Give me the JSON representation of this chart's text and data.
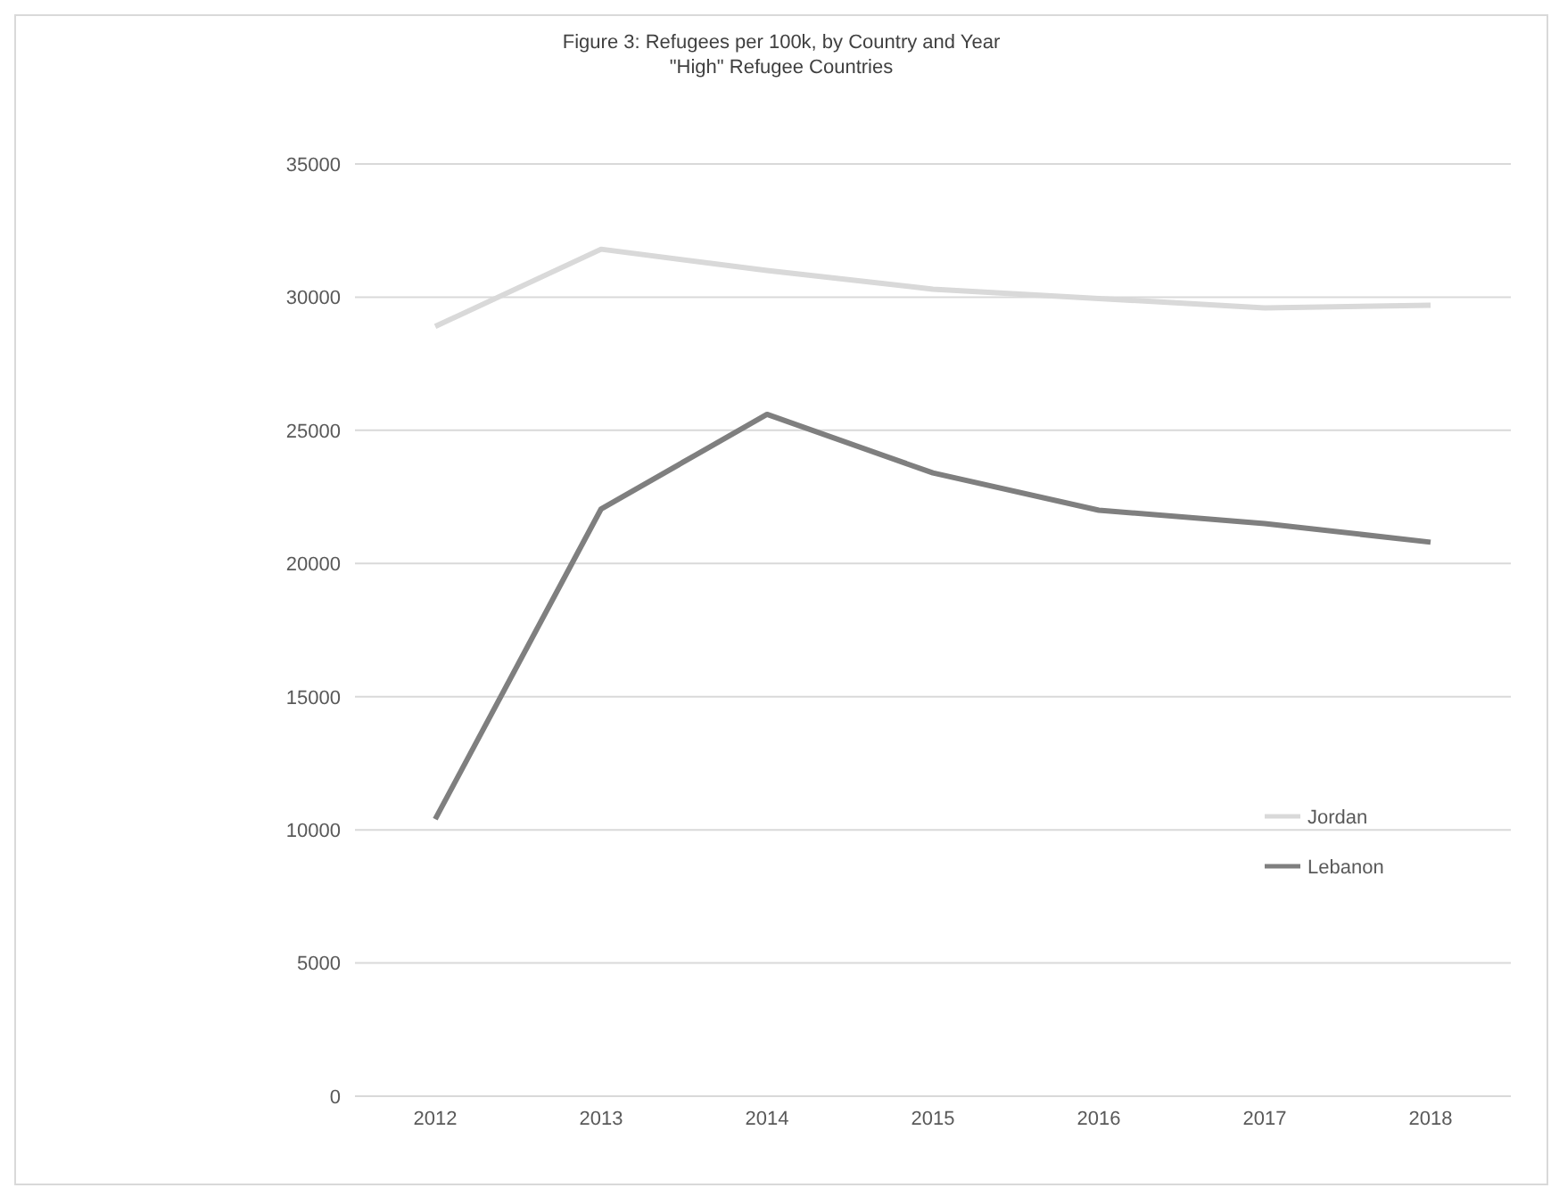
{
  "chart_data": {
    "type": "line",
    "title": "Figure 3: Refugees per 100k, by Country and Year",
    "subtitle": "\"High\" Refugee Countries",
    "categories": [
      "2012",
      "2013",
      "2014",
      "2015",
      "2016",
      "2017",
      "2018"
    ],
    "series": [
      {
        "name": "Jordan",
        "color": "#d9d9d9",
        "values": [
          28900,
          31800,
          31000,
          30300,
          29950,
          29600,
          29700
        ]
      },
      {
        "name": "Lebanon",
        "color": "#7f7f7f",
        "values": [
          10400,
          22050,
          25600,
          23400,
          22000,
          21500,
          20800
        ]
      }
    ],
    "ylim": [
      0,
      35000
    ],
    "yticks": [
      0,
      5000,
      10000,
      15000,
      20000,
      25000,
      30000,
      35000
    ],
    "grid": "y",
    "legend": "right",
    "marker": "none",
    "line_style": "solid"
  }
}
